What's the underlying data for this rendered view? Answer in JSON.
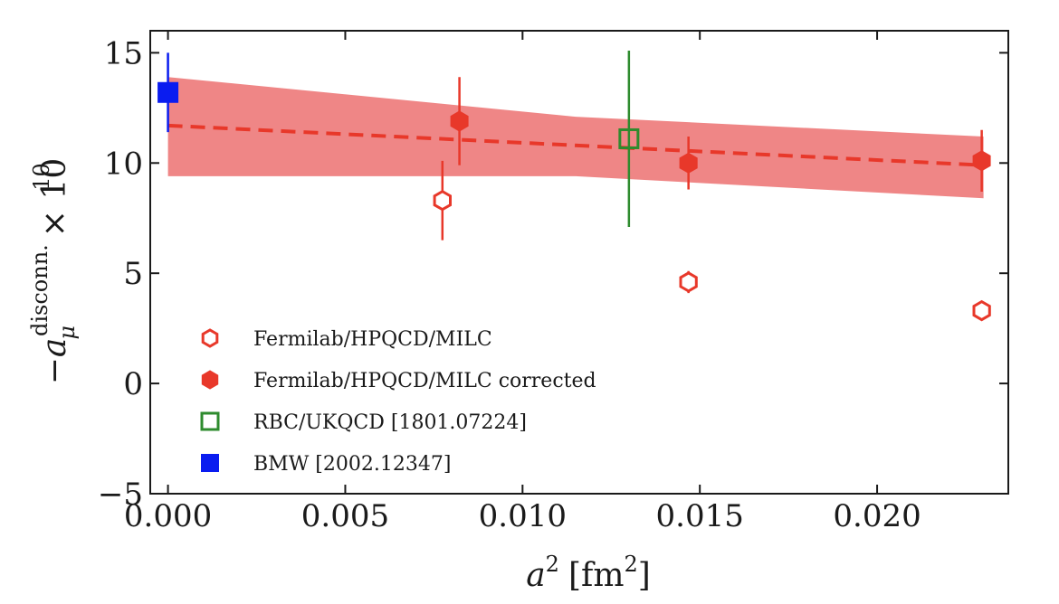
{
  "chart_data": {
    "type": "scatter",
    "title": "",
    "xlabel": "a² [fm²]",
    "ylabel": "−a_μ^{disconn.} × 10¹⁰",
    "ylabel_parts": {
      "minus": "−",
      "a": "a",
      "sub": "μ",
      "sup": "disconn.",
      "times": "× 10",
      "exp": "10"
    },
    "xlabel_parts": {
      "a": "a",
      "sq": "2",
      "open": "[fm",
      "sq2": "2",
      "close": "]"
    },
    "xlim": [
      -0.0005,
      0.0237
    ],
    "ylim": [
      -5,
      16
    ],
    "xticks": [
      0.0,
      0.005,
      0.01,
      0.015,
      0.02
    ],
    "xtick_labels": [
      "0.000",
      "0.005",
      "0.010",
      "0.015",
      "0.020"
    ],
    "yticks": [
      -5,
      0,
      5,
      10,
      15
    ],
    "ytick_labels": [
      "−5",
      "0",
      "5",
      "10",
      "15"
    ],
    "grid": false,
    "legend_position": "lower-left",
    "fit": {
      "x": [
        0.0,
        0.023
      ],
      "y": [
        11.7,
        9.9
      ],
      "band_x": [
        0.0,
        0.0115,
        0.023
      ],
      "band_upper": [
        13.9,
        12.1,
        11.2
      ],
      "band_lower": [
        9.4,
        9.4,
        8.4
      ],
      "color": "#e8382a",
      "band_color": "#ee8080"
    },
    "series": [
      {
        "name": "Fermilab/HPQCD/MILC",
        "marker": "hexagon-open",
        "color": "#e8382a",
        "points": [
          {
            "x": 0.00774,
            "y": 8.3,
            "err": 1.8
          },
          {
            "x": 0.01468,
            "y": 4.6,
            "err": 0.5
          },
          {
            "x": 0.02295,
            "y": 3.3,
            "err": 0.3
          }
        ]
      },
      {
        "name": "Fermilab/HPQCD/MILC corrected",
        "marker": "hexagon-filled",
        "color": "#e8382a",
        "points": [
          {
            "x": 0.00822,
            "y": 11.9,
            "err": 2.0
          },
          {
            "x": 0.01468,
            "y": 10.0,
            "err": 1.2
          },
          {
            "x": 0.02295,
            "y": 10.1,
            "err": 1.4
          }
        ]
      },
      {
        "name": "RBC/UKQCD [1801.07224]",
        "marker": "square-open",
        "color": "#2e8b2e",
        "points": [
          {
            "x": 0.013,
            "y": 11.1,
            "err": 4.0
          }
        ]
      },
      {
        "name": "BMW [2002.12347]",
        "marker": "square-filled",
        "color": "#0a1cf0",
        "points": [
          {
            "x": 0.0,
            "y": 13.2,
            "err": 1.8
          }
        ]
      }
    ]
  }
}
